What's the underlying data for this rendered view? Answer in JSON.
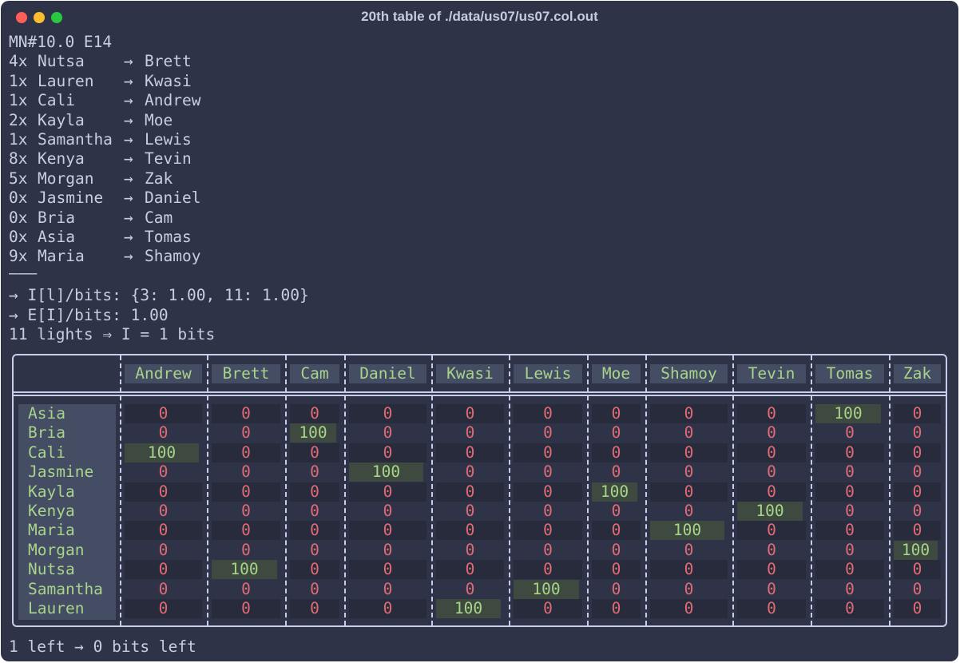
{
  "window": {
    "title": "20th table of ./data/us07/us07.col.out"
  },
  "header_line": "MN#10.0 E14",
  "guesses": [
    {
      "count": "4x",
      "from": "Nutsa",
      "arrow": "→",
      "to": "Brett"
    },
    {
      "count": "1x",
      "from": "Lauren",
      "arrow": "→",
      "to": "Kwasi"
    },
    {
      "count": "1x",
      "from": "Cali",
      "arrow": "→",
      "to": "Andrew"
    },
    {
      "count": "2x",
      "from": "Kayla",
      "arrow": "→",
      "to": "Moe"
    },
    {
      "count": "1x",
      "from": "Samantha",
      "arrow": "→",
      "to": "Lewis"
    },
    {
      "count": "8x",
      "from": "Kenya",
      "arrow": "→",
      "to": "Tevin"
    },
    {
      "count": "5x",
      "from": "Morgan",
      "arrow": "→",
      "to": "Zak"
    },
    {
      "count": "0x",
      "from": "Jasmine",
      "arrow": "→",
      "to": "Daniel"
    },
    {
      "count": "0x",
      "from": "Bria",
      "arrow": "→",
      "to": "Cam"
    },
    {
      "count": "0x",
      "from": "Asia",
      "arrow": "→",
      "to": "Tomas"
    },
    {
      "count": "9x",
      "from": "Maria",
      "arrow": "→",
      "to": "Shamoy"
    }
  ],
  "separator": "———",
  "info_lines": [
    "→ I[l]/bits: {3: 1.00, 11: 1.00}",
    "→ E[I]/bits: 1.00",
    "11 lights ⇒ I = 1 bits"
  ],
  "table": {
    "columns": [
      "Andrew",
      "Brett",
      "Cam",
      "Daniel",
      "Kwasi",
      "Lewis",
      "Moe",
      "Shamoy",
      "Tevin",
      "Tomas",
      "Zak"
    ],
    "rows": [
      {
        "name": "Asia",
        "values": [
          "0",
          "0",
          "0",
          "0",
          "0",
          "0",
          "0",
          "0",
          "0",
          "100",
          "0"
        ]
      },
      {
        "name": "Bria",
        "values": [
          "0",
          "0",
          "100",
          "0",
          "0",
          "0",
          "0",
          "0",
          "0",
          "0",
          "0"
        ]
      },
      {
        "name": "Cali",
        "values": [
          "100",
          "0",
          "0",
          "0",
          "0",
          "0",
          "0",
          "0",
          "0",
          "0",
          "0"
        ]
      },
      {
        "name": "Jasmine",
        "values": [
          "0",
          "0",
          "0",
          "100",
          "0",
          "0",
          "0",
          "0",
          "0",
          "0",
          "0"
        ]
      },
      {
        "name": "Kayla",
        "values": [
          "0",
          "0",
          "0",
          "0",
          "0",
          "0",
          "100",
          "0",
          "0",
          "0",
          "0"
        ]
      },
      {
        "name": "Kenya",
        "values": [
          "0",
          "0",
          "0",
          "0",
          "0",
          "0",
          "0",
          "0",
          "100",
          "0",
          "0"
        ]
      },
      {
        "name": "Maria",
        "values": [
          "0",
          "0",
          "0",
          "0",
          "0",
          "0",
          "0",
          "100",
          "0",
          "0",
          "0"
        ]
      },
      {
        "name": "Morgan",
        "values": [
          "0",
          "0",
          "0",
          "0",
          "0",
          "0",
          "0",
          "0",
          "0",
          "0",
          "100"
        ]
      },
      {
        "name": "Nutsa",
        "values": [
          "0",
          "100",
          "0",
          "0",
          "0",
          "0",
          "0",
          "0",
          "0",
          "0",
          "0"
        ]
      },
      {
        "name": "Samantha",
        "values": [
          "0",
          "0",
          "0",
          "0",
          "0",
          "100",
          "0",
          "0",
          "0",
          "0",
          "0"
        ]
      },
      {
        "name": "Lauren",
        "values": [
          "0",
          "0",
          "0",
          "0",
          "100",
          "0",
          "0",
          "0",
          "0",
          "0",
          "0"
        ]
      }
    ]
  },
  "footer_line": "1 left → 0 bits left",
  "colors": {
    "background": "#2f3347",
    "zero": "#e06b74",
    "hit_text": "#a8d48a",
    "hit_bg": "#3e4a3f"
  }
}
